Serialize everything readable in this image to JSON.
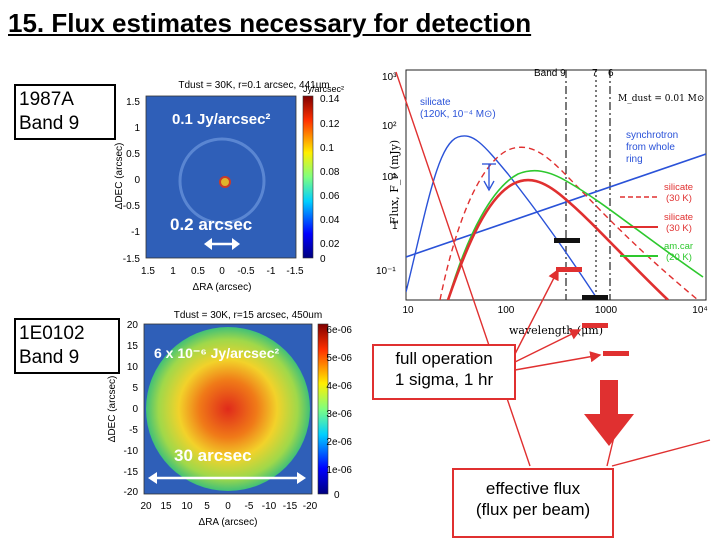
{
  "title": "15. Flux estimates necessary for detection",
  "top_label": [
    "1987A",
    "Band 9"
  ],
  "bottom_label": [
    "1E0102",
    "Band 9"
  ],
  "map_top": {
    "header": "Tdust = 30K, r=0.1 arcsec, 441um",
    "overlay_flux": "0.1 Jy/arcsec²",
    "overlay_size": "0.2 arcsec",
    "xlabel": "ΔRA (arcsec)",
    "ylabel": "ΔDEC (arcsec)",
    "xticks": [
      "1.5",
      "1",
      "0.5",
      "0",
      "-0.5",
      "-1",
      "-1.5"
    ],
    "yticks": [
      "1.5",
      "1",
      "0.5",
      "0",
      "-0.5",
      "-1",
      "-1.5"
    ],
    "cbar_title": "Jy/arcsec²",
    "cbar_ticks": [
      "0.14",
      "0.12",
      "0.1",
      "0.08",
      "0.06",
      "0.04",
      "0.02",
      "0"
    ]
  },
  "map_bottom": {
    "header": "Tdust = 30K, r=15 arcsec, 450um",
    "overlay_flux": "6 x 10⁻⁶ Jy/arcsec²",
    "overlay_size": "30 arcsec",
    "xlabel": "ΔRA (arcsec)",
    "ylabel": "ΔDEC (arcsec)",
    "xticks": [
      "20",
      "15",
      "10",
      "5",
      "0",
      "-5",
      "-10",
      "-15",
      "-20"
    ],
    "yticks": [
      "20",
      "15",
      "10",
      "5",
      "0",
      "-5",
      "-10",
      "-15",
      "-20"
    ],
    "cbar_ticks": [
      "6e-06",
      "5e-06",
      "4e-06",
      "3e-06",
      "2e-06",
      "1e-06",
      "0"
    ]
  },
  "sed": {
    "band_labels": [
      "Band 9",
      "7",
      "6"
    ],
    "mdust": "M_dust = 0.01 M⊙",
    "silicate_label": [
      "silicate",
      "(120K, 10⁻⁴ M⊙)"
    ],
    "synchrotron_label": [
      "synchrotron",
      "from whole",
      "ring"
    ],
    "legend": [
      {
        "name": "silicate",
        "sub": "(30 K)",
        "style": "dashed",
        "color": "#e03030"
      },
      {
        "name": "silicate",
        "sub": "(30 K)",
        "style": "solid",
        "color": "#e03030"
      },
      {
        "name": "am.car",
        "sub": "(20 K)",
        "style": "solid",
        "color": "#2ec82e"
      }
    ],
    "ylabel": "Flux, F_ν (mJy)",
    "xlabel": "wavelength (μm)",
    "xticks": [
      "10",
      "100",
      "1000",
      "10⁴"
    ],
    "yticks": [
      "10³",
      "10²",
      "10¹",
      "1",
      "10⁻¹"
    ]
  },
  "callout_sensitivity": [
    "full operation",
    "1 sigma, 1 hr"
  ],
  "callout_effective": [
    "effective flux",
    "(flux per beam)"
  ],
  "colors": {
    "accent_red": "#e03030",
    "map_blue": "#2f5fb8"
  }
}
